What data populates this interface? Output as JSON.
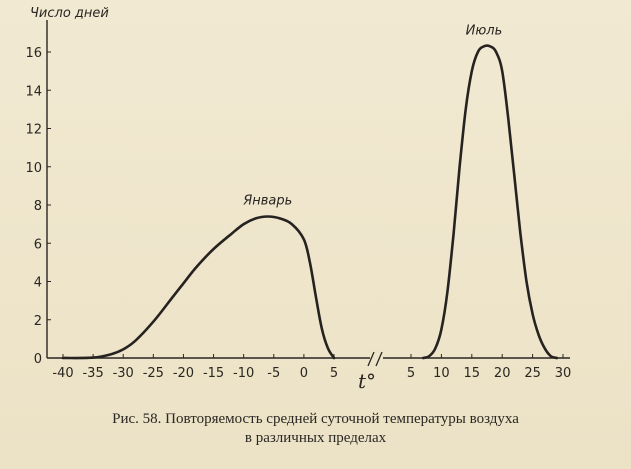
{
  "chart_data": {
    "type": "line",
    "ylabel": "Число дней",
    "xlabel": "t°",
    "y_ticks": [
      0,
      2,
      4,
      6,
      8,
      10,
      12,
      14,
      16
    ],
    "ylim": [
      0,
      17
    ],
    "grid": false,
    "legend": "none",
    "series": [
      {
        "name": "Январь",
        "x_ticks": [
          -40,
          -35,
          -30,
          -25,
          -20,
          -15,
          -10,
          -5,
          0,
          5
        ],
        "xlim": [
          -40,
          5
        ],
        "x": [
          -40,
          -35,
          -32,
          -30,
          -28,
          -25,
          -22,
          -20,
          -18,
          -15,
          -12,
          -10,
          -8,
          -6,
          -4,
          -2,
          0,
          1,
          2,
          3,
          4,
          5
        ],
        "y": [
          0,
          0.02,
          0.2,
          0.45,
          0.9,
          1.9,
          3.1,
          3.9,
          4.7,
          5.7,
          6.5,
          7.0,
          7.3,
          7.4,
          7.3,
          7.0,
          6.2,
          5.0,
          3.2,
          1.5,
          0.5,
          0
        ]
      },
      {
        "name": "Июль",
        "x_ticks": [
          5,
          10,
          15,
          20,
          25,
          30
        ],
        "xlim": [
          5,
          30
        ],
        "x": [
          7,
          8,
          9,
          10,
          11,
          12,
          13,
          14,
          15,
          16,
          17,
          18,
          19,
          20,
          21,
          22,
          23,
          24,
          25,
          26,
          27,
          28,
          29
        ],
        "y": [
          0,
          0.1,
          0.5,
          1.5,
          3.5,
          6.5,
          10.0,
          13.0,
          15.0,
          16.0,
          16.3,
          16.3,
          16.0,
          15.0,
          12.5,
          9.5,
          6.5,
          4.0,
          2.3,
          1.2,
          0.5,
          0.1,
          0
        ]
      }
    ]
  },
  "caption": {
    "line1": "Рис. 58. Повторяемость средней суточной температуры воздуха",
    "line2": "в различных пределах"
  }
}
